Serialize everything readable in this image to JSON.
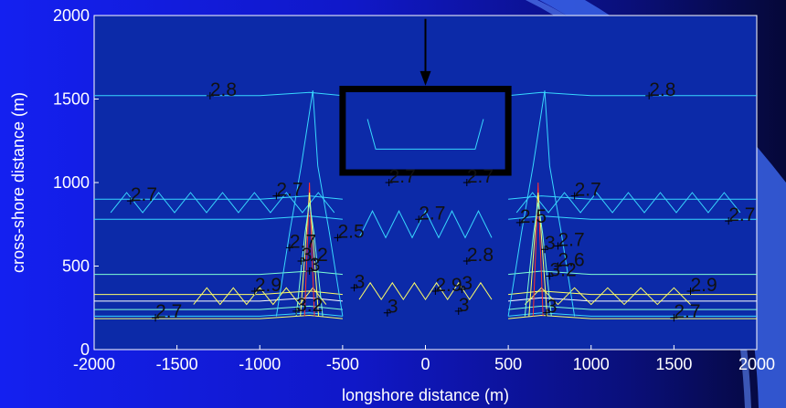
{
  "colors": {
    "slide_gradient": [
      "#1420f0",
      "#0a0f7a",
      "#050838"
    ],
    "plot_background": "#0c2aa8",
    "contour_palette": [
      "#38d8ff",
      "#7fffd4",
      "#ffff66",
      "#ff3030",
      "#ffffff"
    ],
    "structure_outline": "#000000",
    "axis_text": "#ffffff",
    "label_text": "#111111"
  },
  "chart_data": {
    "type": "contour",
    "title": "",
    "xlabel": "longshore distance (m)",
    "ylabel": "cross-shore distance (m)",
    "xlim": [
      -2000,
      2000
    ],
    "ylim": [
      0,
      2000
    ],
    "xticks": [
      -2000,
      -1500,
      -1000,
      -500,
      0,
      500,
      1000,
      1500,
      2000
    ],
    "yticks": [
      0,
      500,
      1000,
      1500,
      2000
    ],
    "grid": false,
    "structure_box": {
      "x": [
        -500,
        500
      ],
      "y": [
        1060,
        1560
      ]
    },
    "arrow": {
      "x": 0,
      "y_from": 1980,
      "y_to": 1580
    },
    "contour_labels": [
      {
        "text": "2.8",
        "x": -1300,
        "y": 1520
      },
      {
        "text": "2.8",
        "x": 1350,
        "y": 1520
      },
      {
        "text": "2.7",
        "x": -1780,
        "y": 890
      },
      {
        "text": "2.7",
        "x": -900,
        "y": 920
      },
      {
        "text": "2.7",
        "x": -220,
        "y": 1000
      },
      {
        "text": "2.7",
        "x": 250,
        "y": 1000
      },
      {
        "text": "2.7",
        "x": -40,
        "y": 780
      },
      {
        "text": "2.7",
        "x": 900,
        "y": 920
      },
      {
        "text": "2.7",
        "x": 1830,
        "y": 770
      },
      {
        "text": "2.7",
        "x": 800,
        "y": 620
      },
      {
        "text": "2.7",
        "x": -1630,
        "y": 190
      },
      {
        "text": "2.7",
        "x": 1500,
        "y": 190
      },
      {
        "text": "2.7",
        "x": -820,
        "y": 610
      },
      {
        "text": "2.5",
        "x": -530,
        "y": 670
      },
      {
        "text": "2.5",
        "x": 570,
        "y": 760
      },
      {
        "text": "2.8",
        "x": 250,
        "y": 530
      },
      {
        "text": "2.6",
        "x": 800,
        "y": 500
      },
      {
        "text": "2.9",
        "x": -1030,
        "y": 350
      },
      {
        "text": "2.9",
        "x": 60,
        "y": 350
      },
      {
        "text": "2.9",
        "x": 1600,
        "y": 350
      },
      {
        "text": "3.2",
        "x": -750,
        "y": 530
      },
      {
        "text": "3.2",
        "x": -780,
        "y": 230
      },
      {
        "text": "3.2",
        "x": 750,
        "y": 440
      },
      {
        "text": "3",
        "x": -700,
        "y": 470
      },
      {
        "text": "3",
        "x": -430,
        "y": 370
      },
      {
        "text": "3",
        "x": -230,
        "y": 220
      },
      {
        "text": "3",
        "x": 220,
        "y": 360
      },
      {
        "text": "3",
        "x": 200,
        "y": 230
      },
      {
        "text": "3",
        "x": 720,
        "y": 600
      },
      {
        "text": "3",
        "x": 730,
        "y": 220
      }
    ]
  }
}
